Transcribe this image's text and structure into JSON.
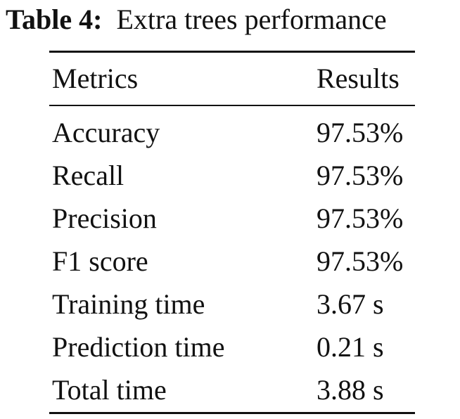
{
  "caption": {
    "label": "Table 4:",
    "text": "Extra trees performance"
  },
  "table": {
    "headers": [
      "Metrics",
      "Results"
    ],
    "rows": [
      {
        "metric": "Accuracy",
        "result": "97.53%"
      },
      {
        "metric": "Recall",
        "result": "97.53%"
      },
      {
        "metric": "Precision",
        "result": "97.53%"
      },
      {
        "metric": "F1 score",
        "result": "97.53%"
      },
      {
        "metric": "Training time",
        "result": "3.67 s"
      },
      {
        "metric": "Prediction time",
        "result": "0.21 s"
      },
      {
        "metric": "Total time",
        "result": "3.88 s"
      }
    ]
  }
}
